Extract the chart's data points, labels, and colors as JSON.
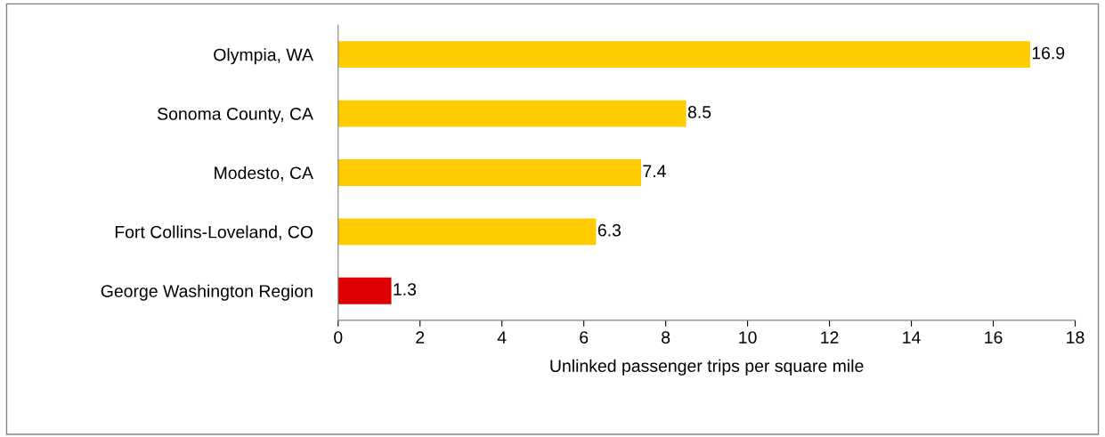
{
  "chart_data": {
    "type": "bar",
    "orientation": "horizontal",
    "xlabel": "Unlinked passenger trips per square mile",
    "categories": [
      "Olympia, WA",
      "Sonoma County, CA",
      "Modesto, CA",
      "Fort Collins-Loveland, CO",
      "George Washington Region"
    ],
    "values": [
      16.9,
      8.5,
      7.4,
      6.3,
      1.3
    ],
    "colors": [
      "#ffcc00",
      "#ffcc00",
      "#ffcc00",
      "#ffcc00",
      "#dd0000"
    ],
    "xlim": [
      0,
      18
    ],
    "xticks": [
      0,
      2,
      4,
      6,
      8,
      10,
      12,
      14,
      16,
      18
    ],
    "data_labels": true
  }
}
